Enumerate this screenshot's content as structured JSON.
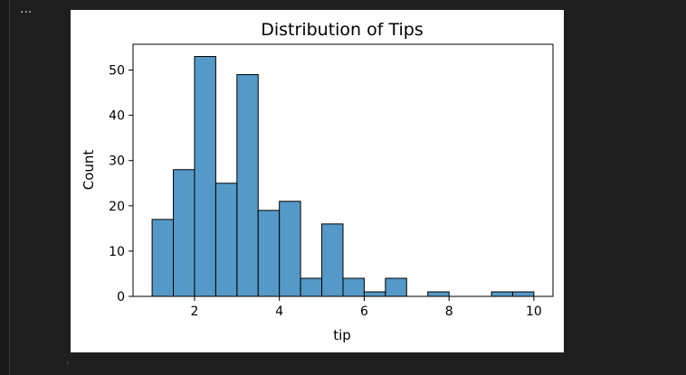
{
  "cell": {
    "more_label": "···",
    "scroll_hint": "‹"
  },
  "chart_data": {
    "type": "bar",
    "title": "Distribution of Tips",
    "xlabel": "tip",
    "ylabel": "Count",
    "bin_edges": [
      1.0,
      1.5,
      2.0,
      2.5,
      3.0,
      3.5,
      4.0,
      4.5,
      5.0,
      5.5,
      6.0,
      6.5,
      7.0,
      7.5,
      8.0,
      8.5,
      9.0,
      9.5,
      10.0
    ],
    "values": [
      17,
      28,
      53,
      25,
      49,
      19,
      21,
      4,
      16,
      4,
      1,
      4,
      0,
      1,
      0,
      0,
      1,
      1
    ],
    "xlim": [
      0.55,
      10.45
    ],
    "ylim": [
      0,
      55.7
    ],
    "xticks": [
      2,
      4,
      6,
      8,
      10
    ],
    "yticks": [
      0,
      10,
      20,
      30,
      40,
      50
    ],
    "grid": false,
    "bar_color": "#5499c7",
    "edge_color": "#000000"
  }
}
